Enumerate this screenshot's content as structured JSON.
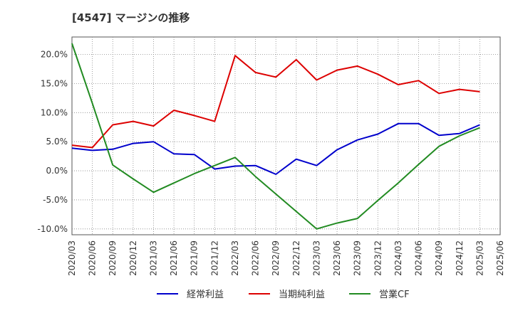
{
  "title": "[4547]  マージンの推移",
  "chart_data": {
    "type": "line",
    "x": [
      "2020/03",
      "2020/06",
      "2020/09",
      "2020/12",
      "2021/03",
      "2021/06",
      "2021/09",
      "2021/12",
      "2022/03",
      "2022/06",
      "2022/09",
      "2022/12",
      "2023/03",
      "2023/06",
      "2023/09",
      "2023/12",
      "2024/03",
      "2024/06",
      "2024/09",
      "2024/12",
      "2025/03",
      "2025/06"
    ],
    "yticks": [
      "20.0%",
      "15.0%",
      "10.0%",
      "5.0%",
      "0.0%",
      "-5.0%",
      "-10.0%"
    ],
    "ytick_values": [
      20,
      15,
      10,
      5,
      0,
      -5,
      -10
    ],
    "ylim": [
      -11,
      23
    ],
    "grid": true,
    "legend_position": "bottom",
    "series": [
      {
        "name": "経常利益",
        "color": "#0000cc",
        "values": [
          3.9,
          3.5,
          3.7,
          4.7,
          5.0,
          2.9,
          2.8,
          0.3,
          0.8,
          0.9,
          -0.6,
          2.0,
          0.9,
          3.6,
          5.3,
          6.3,
          8.1,
          8.1,
          6.1,
          6.4,
          7.9,
          null
        ]
      },
      {
        "name": "当期純利益",
        "color": "#dd0000",
        "values": [
          4.4,
          4.0,
          7.9,
          8.5,
          7.7,
          10.4,
          9.5,
          8.5,
          19.8,
          16.9,
          16.1,
          19.1,
          15.6,
          17.3,
          18.0,
          16.6,
          14.8,
          15.5,
          13.3,
          14.0,
          13.6,
          null
        ]
      },
      {
        "name": "営業CF",
        "color": "#228b22",
        "values": [
          21.9,
          11.6,
          1.0,
          -1.4,
          -3.7,
          -2.1,
          -0.5,
          0.9,
          2.3,
          -1.0,
          -4.0,
          -7.0,
          -10.0,
          -9.0,
          -8.2,
          -5.1,
          -2.1,
          1.1,
          4.2,
          6.0,
          7.4,
          null
        ]
      }
    ]
  }
}
